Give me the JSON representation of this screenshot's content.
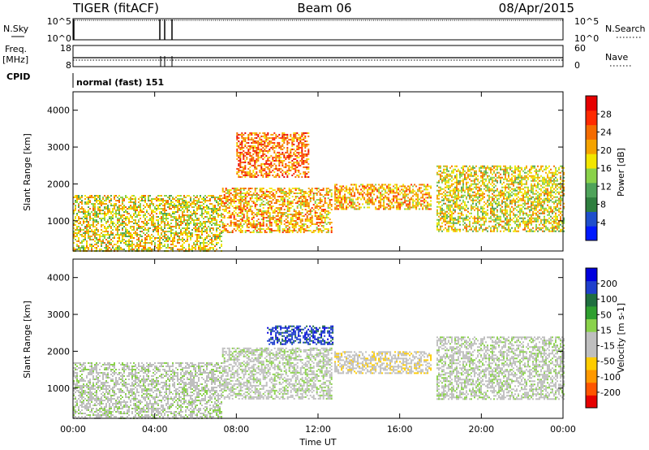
{
  "header": {
    "radar": "TIGER (fitACF)",
    "beam": "Beam 06",
    "date": "08/Apr/2015"
  },
  "labels": {
    "nsky": "N.Sky",
    "nsearch": "N.Search",
    "freq": "Freq.",
    "mhz": "[MHz]",
    "nave": "Nave",
    "cpid": "CPID",
    "cpid_value": "normal (fast) 151",
    "x_axis": "Time UT",
    "y_axis": "Slant Range [km]",
    "power_cb": "Power [dB]",
    "velocity_cb": "Velocity [m s-1]"
  },
  "noise_panel": {
    "left_ticks": [
      "10^5",
      "10^0"
    ],
    "right_ticks": [
      "10^5",
      "10^0"
    ]
  },
  "freq_panel": {
    "left_ticks": [
      "18",
      "8"
    ],
    "right_ticks": [
      "60",
      "0"
    ]
  },
  "colors": {
    "power": [
      "#0019ff",
      "#1f4fcc",
      "#2f7f3f",
      "#4fa35a",
      "#8ad24a",
      "#f2e600",
      "#f5a300",
      "#f46b00",
      "#ff2a00",
      "#e60000"
    ],
    "velocity": [
      "#e60000",
      "#ff5500",
      "#ff9900",
      "#ffcc00",
      "#bfbfbf",
      "#bfbfbf",
      "#8ad24a",
      "#2f9f2f",
      "#1f6f3f",
      "#1f3fcc",
      "#0000dd"
    ]
  },
  "chart_data": [
    {
      "type": "heatmap",
      "title": "Power",
      "ylabel": "Slant Range [km]",
      "xlabel": "Time UT",
      "xlim": [
        "00:00",
        "24:00"
      ],
      "ylim": [
        180,
        4500
      ],
      "x_ticks": [
        "00:00",
        "04:00",
        "08:00",
        "12:00",
        "16:00",
        "20:00",
        "00:00"
      ],
      "y_ticks": [
        1000,
        2000,
        3000,
        4000
      ],
      "colorbar": {
        "label": "Power [dB]",
        "range": [
          0,
          32
        ],
        "ticks": [
          "4",
          "8",
          "12",
          "16",
          "20",
          "24",
          "28"
        ]
      },
      "regions": [
        {
          "name": "near-range",
          "t_start": 0.0,
          "t_end": 7.3,
          "r_low": 200,
          "r_high": 1700,
          "dB": 18
        },
        {
          "name": "sloped-band",
          "t_start": 7.3,
          "t_end": 12.7,
          "r_low": 700,
          "r_high": 1900,
          "dB": 22
        },
        {
          "name": "upper-streak",
          "t_start": 8.0,
          "t_end": 11.5,
          "r_low": 2200,
          "r_high": 3400,
          "dB": 24
        },
        {
          "name": "midday",
          "t_start": 12.8,
          "t_end": 17.5,
          "r_low": 1300,
          "r_high": 2000,
          "dB": 20
        },
        {
          "name": "evening",
          "t_start": 17.8,
          "t_end": 24.0,
          "r_low": 700,
          "r_high": 2500,
          "dB": 18
        }
      ]
    },
    {
      "type": "heatmap",
      "title": "Velocity",
      "ylabel": "Slant Range [km]",
      "xlabel": "Time UT",
      "xlim": [
        "00:00",
        "24:00"
      ],
      "ylim": [
        180,
        4500
      ],
      "x_ticks": [
        "00:00",
        "04:00",
        "08:00",
        "12:00",
        "16:00",
        "20:00",
        "00:00"
      ],
      "y_ticks": [
        1000,
        2000,
        3000,
        4000
      ],
      "colorbar": {
        "label": "Velocity [m s-1]",
        "range": [
          -250,
          250
        ],
        "ticks": [
          "200",
          "100",
          "50",
          "15",
          "-15",
          "-50",
          "-100",
          "-200"
        ]
      },
      "regions": [
        {
          "name": "near-range",
          "t_start": 0.0,
          "t_end": 7.3,
          "r_low": 200,
          "r_high": 1700,
          "v": 0
        },
        {
          "name": "sloped-band",
          "t_start": 7.3,
          "t_end": 12.7,
          "r_low": 700,
          "r_high": 2100,
          "v": 0
        },
        {
          "name": "upper-streak",
          "t_start": 9.5,
          "t_end": 12.7,
          "r_low": 2200,
          "r_high": 2700,
          "v": 200
        },
        {
          "name": "midday",
          "t_start": 12.8,
          "t_end": 17.5,
          "r_low": 1400,
          "r_high": 2000,
          "v": -70
        },
        {
          "name": "evening",
          "t_start": 17.8,
          "t_end": 24.0,
          "r_low": 700,
          "r_high": 2400,
          "v": 0
        }
      ]
    }
  ]
}
